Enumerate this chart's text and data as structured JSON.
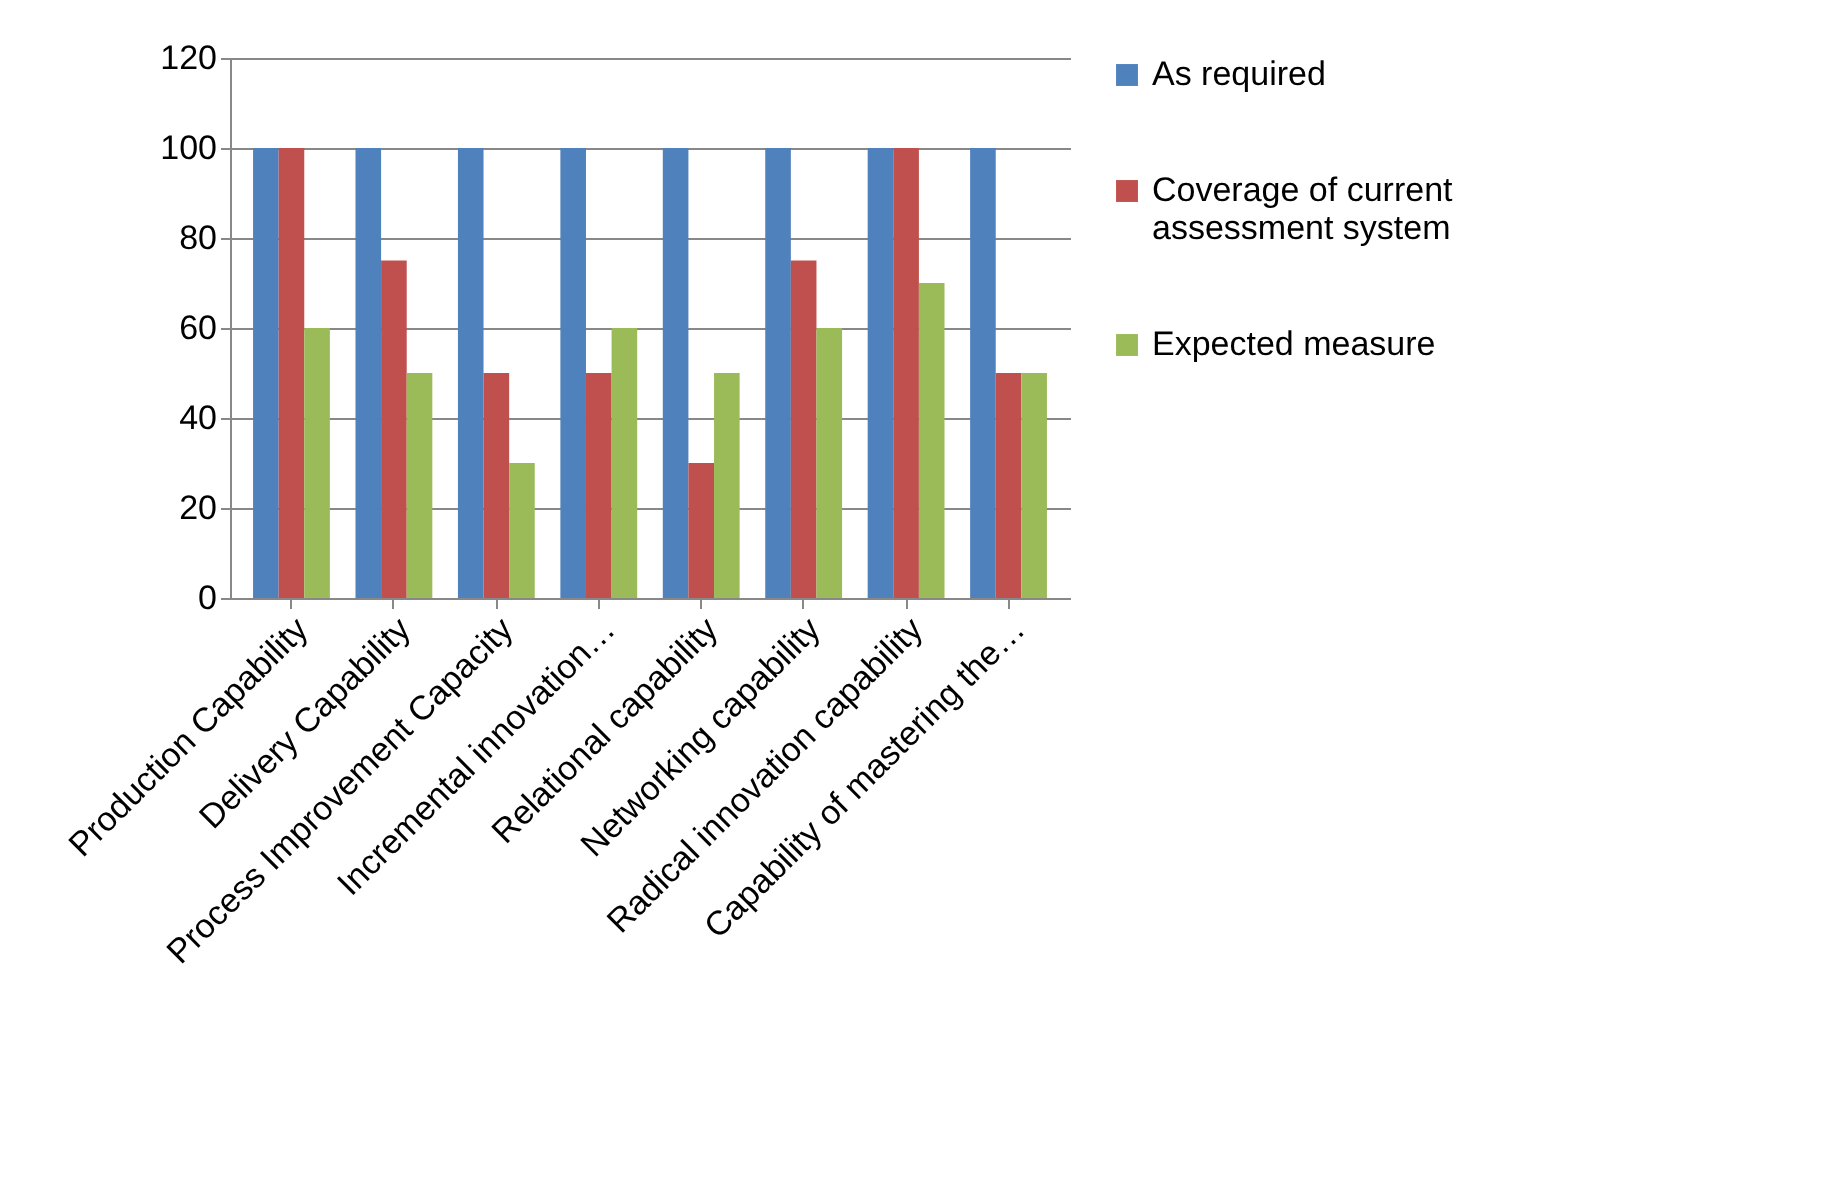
{
  "chart_data": {
    "type": "bar",
    "categories": [
      "Production Capability",
      "Delivery Capability",
      "Process Improvement Capacity",
      "Incremental innovation…",
      "Relational capability",
      "Networking capability",
      "Radical innovation capability",
      "Capability of mastering the…"
    ],
    "series": [
      {
        "name": "As required",
        "color": "#4f81bd",
        "values": [
          100,
          100,
          100,
          100,
          100,
          100,
          100,
          100
        ]
      },
      {
        "name": "Coverage of current assessment system",
        "color": "#c0504d",
        "values": [
          100,
          75,
          50,
          50,
          30,
          75,
          100,
          50
        ]
      },
      {
        "name": "Expected measure",
        "color": "#9bbb59",
        "values": [
          60,
          50,
          30,
          60,
          50,
          60,
          70,
          50
        ]
      }
    ],
    "ylim": [
      0,
      120
    ],
    "yticks": [
      0,
      20,
      40,
      60,
      80,
      100,
      120
    ],
    "grid": "y",
    "legend": "right"
  }
}
